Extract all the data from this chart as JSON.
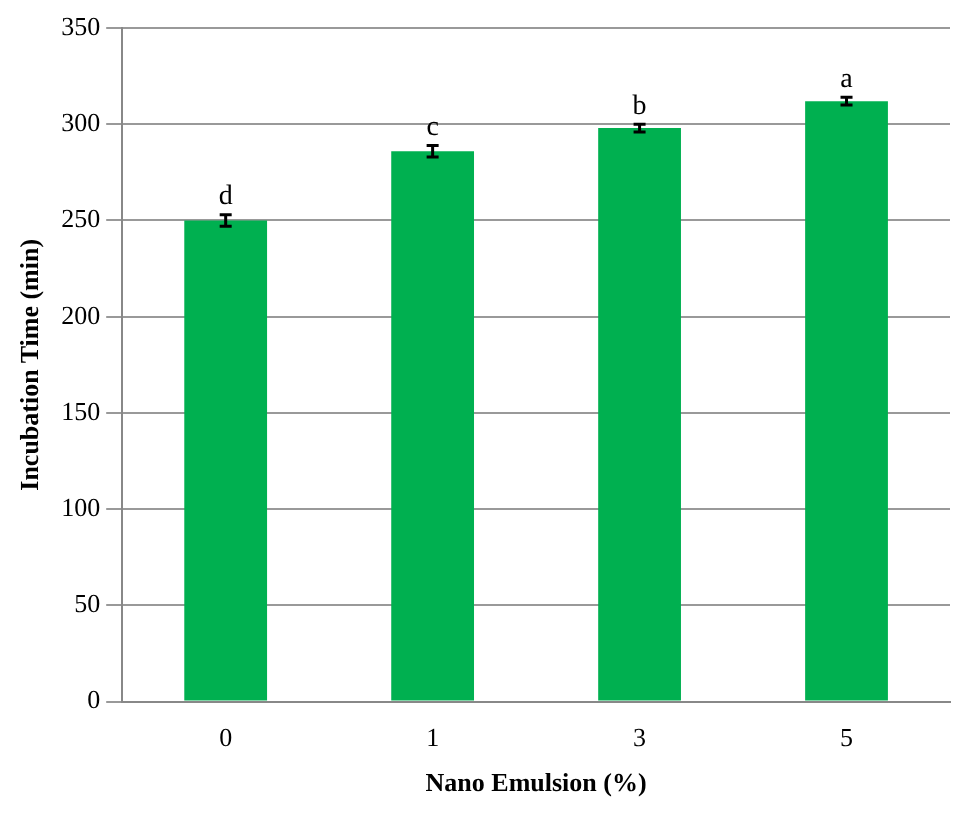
{
  "chart_data": {
    "type": "bar",
    "xlabel": "Nano Emulsion (%)",
    "ylabel": "Incubation Time (min)",
    "categories": [
      "0",
      "1",
      "3",
      "5"
    ],
    "values": [
      250,
      286,
      298,
      312
    ],
    "errors": [
      3,
      3,
      2,
      2
    ],
    "color": "#00b050",
    "ylim": [
      0,
      350
    ],
    "yticks": [
      0,
      50,
      100,
      150,
      200,
      250,
      300,
      350
    ],
    "grid": "y",
    "legend": false,
    "annotations": [
      {
        "text": "d",
        "x": "0",
        "y": 253
      },
      {
        "text": "c",
        "x": "1",
        "y": 289
      },
      {
        "text": "b",
        "x": "3",
        "y": 300
      },
      {
        "text": "a",
        "x": "5",
        "y": 314
      }
    ]
  }
}
